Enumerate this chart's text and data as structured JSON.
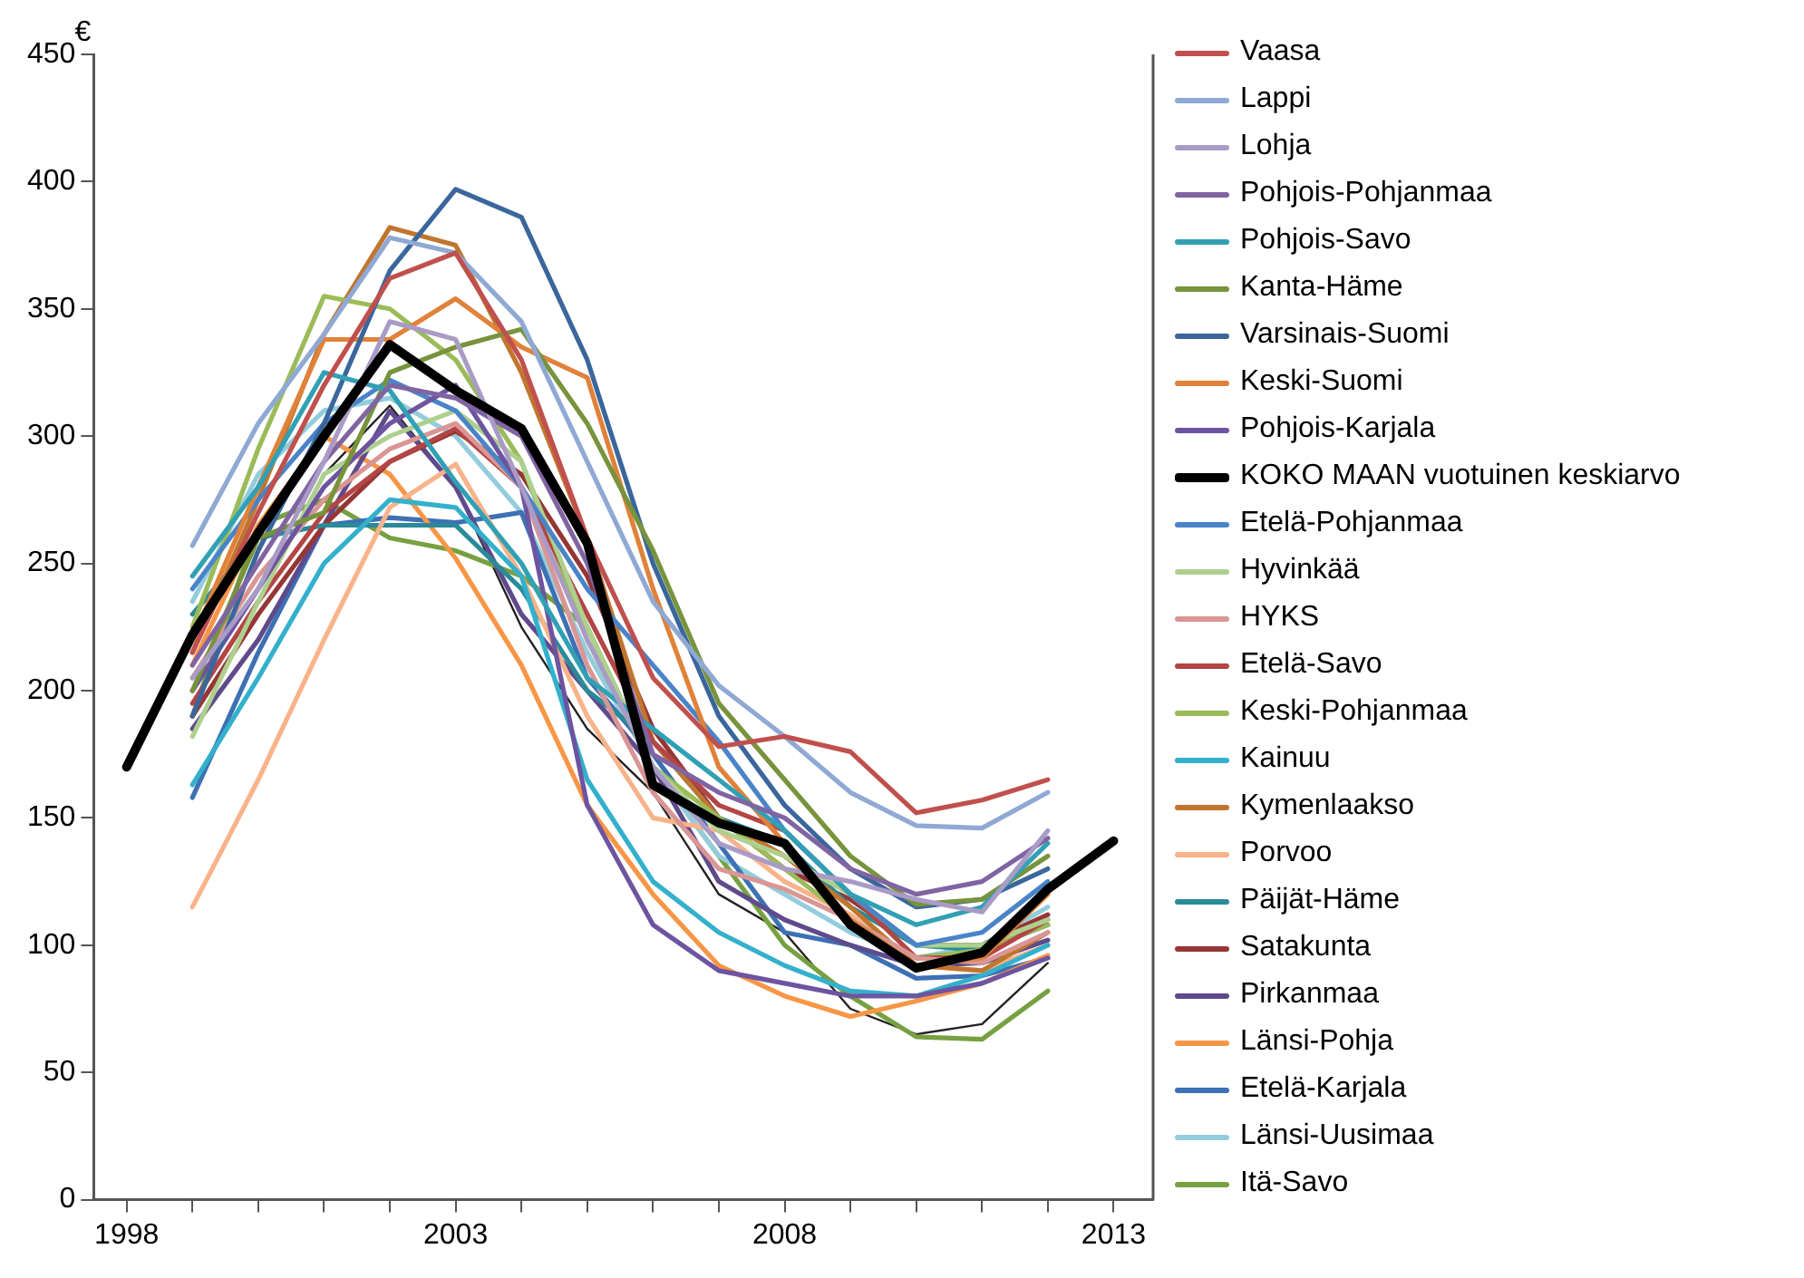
{
  "chart_data": {
    "type": "line",
    "ylabel": "€",
    "x": [
      1999,
      2000,
      2001,
      2002,
      2003,
      2004,
      2005,
      2006,
      2007,
      2008,
      2009,
      2010,
      2011,
      2012
    ],
    "xlim": [
      1997.5,
      2013.6
    ],
    "xticks": [
      1998,
      {
        "value": 1999,
        "label": null
      },
      {
        "value": 2000,
        "label": null
      },
      {
        "value": 2001,
        "label": null
      },
      {
        "value": 2002,
        "label": null
      },
      2003,
      {
        "value": 2004,
        "label": null
      },
      {
        "value": 2005,
        "label": null
      },
      {
        "value": 2006,
        "label": null
      },
      {
        "value": 2007,
        "label": null
      },
      2008,
      {
        "value": 2009,
        "label": null
      },
      {
        "value": 2010,
        "label": null
      },
      {
        "value": 2011,
        "label": null
      },
      {
        "value": 2012,
        "label": null
      },
      2013
    ],
    "ylim": [
      0,
      450
    ],
    "yticks": [
      0,
      50,
      100,
      150,
      200,
      250,
      300,
      350,
      400,
      450
    ],
    "grid": false,
    "legend": "right",
    "marker": "none",
    "line_style": "solid",
    "series": [
      {
        "name": "Vaasa",
        "color": "#c0504d",
        "values": [
          215,
          270,
          320,
          362,
          372,
          330,
          260,
          205,
          178,
          182,
          176,
          152,
          157,
          165
        ]
      },
      {
        "name": "Lappi",
        "color": "#8fa9d4",
        "values": [
          257,
          305,
          340,
          378,
          372,
          345,
          290,
          235,
          202,
          182,
          160,
          147,
          146,
          160
        ]
      },
      {
        "name": "Lohja",
        "color": "#a99bc6",
        "values": [
          205,
          240,
          290,
          345,
          338,
          280,
          220,
          170,
          140,
          130,
          125,
          118,
          113,
          145
        ]
      },
      {
        "name": "Pohjois-Pohjanmaa",
        "color": "#8064a2",
        "values": [
          210,
          250,
          290,
          320,
          315,
          300,
          250,
          175,
          160,
          150,
          130,
          120,
          125,
          142
        ]
      },
      {
        "name": "Pohjois-Savo",
        "color": "#31a0b4",
        "values": [
          245,
          280,
          325,
          318,
          282,
          250,
          205,
          185,
          165,
          145,
          120,
          108,
          115,
          140
        ]
      },
      {
        "name": "Kanta-Häme",
        "color": "#77933c",
        "values": [
          200,
          260,
          270,
          325,
          335,
          342,
          305,
          255,
          195,
          165,
          135,
          116,
          118,
          135
        ]
      },
      {
        "name": "Varsinais-Suomi",
        "color": "#3a669c",
        "values": [
          190,
          255,
          305,
          365,
          397,
          386,
          330,
          250,
          190,
          155,
          130,
          115,
          118,
          130
        ]
      },
      {
        "name": "Keski-Suomi",
        "color": "#e0823a",
        "values": [
          220,
          280,
          338,
          338,
          354,
          335,
          323,
          240,
          170,
          140,
          110,
          92,
          95,
          120
        ]
      },
      {
        "name": "Pohjois-Karjala",
        "color": "#6d54a0",
        "values": [
          200,
          240,
          280,
          305,
          320,
          280,
          155,
          108,
          90,
          85,
          80,
          80,
          85,
          95
        ]
      },
      {
        "name": "KOKO MAAN vuotuinen keskiarvo",
        "color": "#000000",
        "x": [
          1998,
          1999,
          2000,
          2001,
          2002,
          2003,
          2004,
          2005,
          2006,
          2007,
          2008,
          2009,
          2010,
          2011,
          2012,
          2013
        ],
        "values": [
          170,
          222,
          262,
          300,
          336,
          318,
          303,
          258,
          163,
          148,
          140,
          108,
          91,
          97,
          122,
          141
        ]
      },
      {
        "name": "Etelä-Pohjanmaa",
        "color": "#4a84c8",
        "values": [
          240,
          275,
          305,
          322,
          310,
          280,
          240,
          210,
          180,
          145,
          120,
          100,
          105,
          125
        ]
      },
      {
        "name": "Hyvinkää",
        "color": "#aed08e",
        "values": [
          182,
          235,
          285,
          300,
          310,
          290,
          225,
          170,
          145,
          135,
          120,
          100,
          100,
          110
        ]
      },
      {
        "name": "HYKS",
        "color": "#d99694",
        "values": [
          205,
          245,
          275,
          295,
          305,
          280,
          210,
          160,
          130,
          122,
          110,
          95,
          93,
          105
        ]
      },
      {
        "name": "Etelä-Savo",
        "color": "#b34545",
        "values": [
          195,
          235,
          270,
          290,
          303,
          280,
          230,
          180,
          155,
          145,
          120,
          95,
          95,
          110
        ]
      },
      {
        "name": "Keski-Pohjanmaa",
        "color": "#9bbb59",
        "values": [
          225,
          295,
          355,
          350,
          330,
          290,
          220,
          170,
          150,
          130,
          110,
          95,
          98,
          108
        ]
      },
      {
        "name": "Kainuu",
        "color": "#33b0cc",
        "values": [
          163,
          205,
          250,
          275,
          272,
          245,
          165,
          125,
          105,
          92,
          82,
          80,
          88,
          100
        ]
      },
      {
        "name": "Kymenlaakso",
        "color": "#c0762e",
        "values": [
          215,
          275,
          340,
          382,
          375,
          325,
          260,
          180,
          150,
          135,
          115,
          92,
          90,
          105
        ]
      },
      {
        "name": "Porvoo",
        "color": "#f9b38a",
        "values": [
          115,
          165,
          220,
          272,
          289,
          245,
          190,
          150,
          145,
          125,
          112,
          92,
          90,
          100
        ]
      },
      {
        "name": "Päijät-Häme",
        "color": "#2a8a9a",
        "values": [
          230,
          260,
          265,
          265,
          265,
          240,
          200,
          180,
          150,
          140,
          115,
          100,
          98,
          108
        ]
      },
      {
        "name": "Satakunta",
        "color": "#963634",
        "values": [
          190,
          230,
          265,
          290,
          302,
          285,
          245,
          185,
          150,
          130,
          118,
          100,
          100,
          112
        ]
      },
      {
        "name": "Pirkanmaa",
        "color": "#5f4a8b",
        "values": [
          185,
          220,
          265,
          310,
          280,
          230,
          200,
          170,
          125,
          110,
          100,
          92,
          93,
          102
        ]
      },
      {
        "name": "Länsi-Pohja",
        "color": "#f79646",
        "values": [
          210,
          265,
          300,
          285,
          252,
          210,
          155,
          120,
          92,
          80,
          72,
          78,
          85,
          96
        ]
      },
      {
        "name": "Etelä-Karjala",
        "color": "#3d70b4",
        "values": [
          158,
          215,
          265,
          268,
          266,
          270,
          205,
          175,
          140,
          105,
          100,
          87,
          88,
          95
        ]
      },
      {
        "name": "Länsi-Uusimaa",
        "color": "#93cddd",
        "values": [
          235,
          285,
          310,
          315,
          300,
          270,
          215,
          170,
          135,
          120,
          105,
          95,
          100,
          115
        ]
      },
      {
        "name": "Itä-Savo",
        "color": "#77a040",
        "values": [
          190,
          265,
          275,
          260,
          255,
          245,
          225,
          170,
          135,
          100,
          80,
          64,
          63,
          82
        ]
      },
      {
        "color": "#222222",
        "values": [
          null,
          null,
          285,
          312,
          280,
          225,
          185,
          160,
          120,
          105,
          75,
          65,
          69,
          93
        ]
      }
    ]
  }
}
